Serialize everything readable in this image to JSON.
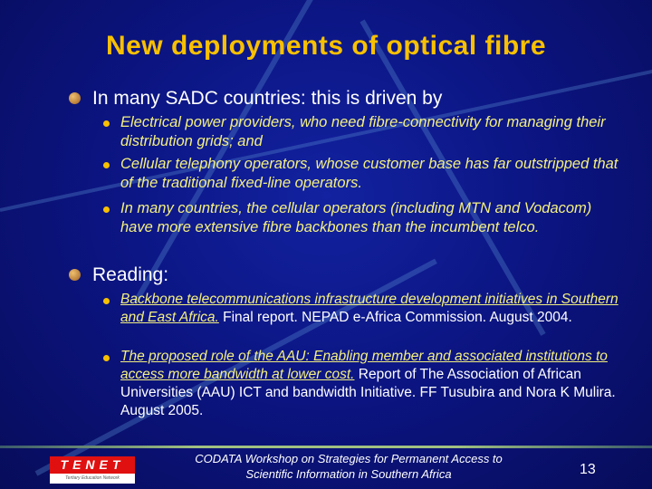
{
  "slide": {
    "title": "New deployments of optical fibre",
    "sections": [
      {
        "heading": "In many SADC countries: this is driven by",
        "items": [
          "Electrical power providers, who need fibre-connectivity for managing their distribution grids; and",
          "Cellular telephony operators, whose customer base has far outstripped that of the traditional fixed-line operators.",
          "In many countries, the cellular operators (including MTN and Vodacom) have more extensive fibre backbones than the incumbent telco."
        ]
      },
      {
        "heading": "Reading:",
        "items": [
          {
            "link": "Backbone telecommunications infrastructure development initiatives in Southern and East Africa.",
            "rest": " Final report. NEPAD e-Africa Commission. August 2004."
          },
          {
            "link": "The proposed role of the AAU: Enabling member and associated institutions to access more bandwidth at lower cost.",
            "rest": " Report of The Association of African Universities (AAU) ICT and bandwidth Initiative. FF Tusubira and Nora K Mulira. August 2005."
          }
        ]
      }
    ]
  },
  "footer": {
    "logo_text": "TENET",
    "logo_subtext": "Tertiary Education Network",
    "line1": "CODATA Workshop on Strategies for Permanent Access to",
    "line2": "Scientific Information in Southern Africa",
    "page_number": "13"
  },
  "colors": {
    "background": "#0a0f6e",
    "title": "#f8c000",
    "sub_bullet_text": "#f4f080"
  }
}
